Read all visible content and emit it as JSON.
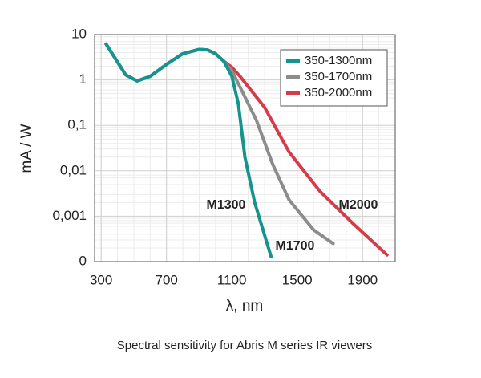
{
  "chart_data": {
    "type": "line",
    "ylog": true,
    "grid": true,
    "minor_grid": true,
    "legend": "upper right",
    "xlabel": "λ, nm",
    "ylabel": "mA / W",
    "caption": "Spectral sensitivity for Abris M series IR viewers",
    "xlim": [
      260,
      2100
    ],
    "xticks": [
      300,
      700,
      1100,
      1500,
      1900
    ],
    "ylim": [
      0.0001,
      10
    ],
    "yticks": [
      {
        "value": 0.0001,
        "label": "0"
      },
      {
        "value": 0.001,
        "label": "0,001"
      },
      {
        "value": 0.01,
        "label": "0,01"
      },
      {
        "value": 0.1,
        "label": "0,1"
      },
      1,
      10
    ],
    "series": [
      {
        "name": "350-2000nm",
        "color": "#d63b4a",
        "x": [
          330,
          400,
          450,
          520,
          600,
          700,
          800,
          900,
          950,
          1000,
          1050,
          1100,
          1150,
          1300,
          1450,
          1640,
          1840,
          2050
        ],
        "values": [
          6.2,
          2.5,
          1.3,
          0.95,
          1.2,
          2.2,
          3.8,
          4.7,
          4.6,
          3.8,
          2.6,
          1.9,
          1.2,
          0.25,
          0.026,
          0.0035,
          0.0007,
          0.00014
        ]
      },
      {
        "name": "350-1700nm",
        "color": "#8c8c8c",
        "x": [
          330,
          400,
          450,
          520,
          600,
          700,
          800,
          900,
          950,
          1000,
          1050,
          1100,
          1150,
          1250,
          1350,
          1450,
          1600,
          1720
        ],
        "values": [
          6.2,
          2.5,
          1.3,
          0.95,
          1.2,
          2.2,
          3.8,
          4.7,
          4.6,
          3.8,
          2.6,
          1.6,
          0.7,
          0.13,
          0.014,
          0.0023,
          0.0005,
          0.00025
        ]
      },
      {
        "name": "350-1300nm",
        "color": "#13948f",
        "x": [
          330,
          400,
          450,
          520,
          600,
          700,
          800,
          900,
          950,
          1000,
          1050,
          1100,
          1140,
          1180,
          1240,
          1340
        ],
        "values": [
          6.2,
          2.5,
          1.3,
          0.95,
          1.2,
          2.2,
          3.8,
          4.7,
          4.6,
          3.8,
          2.6,
          1.2,
          0.3,
          0.02,
          0.002,
          0.00013
        ]
      }
    ],
    "legend_order": [
      2,
      1,
      0
    ],
    "annotations": [
      {
        "text": "M1300",
        "color": "#4d8a88"
      },
      {
        "text": "M1700",
        "color": "#7a7a7a"
      },
      {
        "text": "M2000",
        "color": "#c0323f"
      }
    ]
  }
}
